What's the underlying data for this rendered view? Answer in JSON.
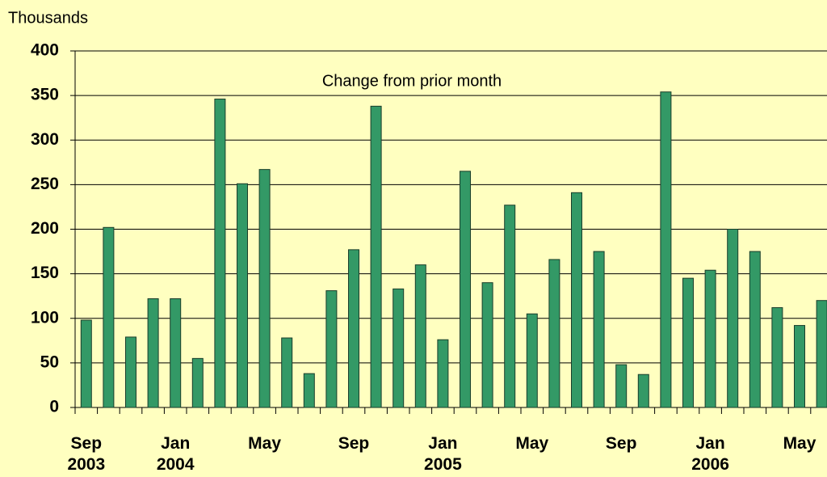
{
  "chart_data": {
    "type": "bar",
    "y_axis_label": "Thousands",
    "annotation": "Change from prior month",
    "categories": [
      "Sep\n2003",
      null,
      null,
      null,
      "Jan\n2004",
      null,
      null,
      null,
      "May",
      null,
      null,
      null,
      "Sep",
      null,
      null,
      null,
      "Jan\n2005",
      null,
      null,
      null,
      "May",
      null,
      null,
      null,
      "Sep",
      null,
      null,
      null,
      "Jan\n2006",
      null,
      null,
      null,
      "May",
      null
    ],
    "values": [
      98,
      202,
      79,
      122,
      122,
      55,
      346,
      251,
      267,
      78,
      38,
      131,
      177,
      338,
      133,
      160,
      76,
      265,
      140,
      227,
      105,
      166,
      241,
      175,
      48,
      37,
      354,
      145,
      154,
      200,
      175,
      112,
      92,
      120
    ],
    "color": "#339966",
    "ylim": [
      0,
      400
    ],
    "yticks": [
      0,
      50,
      100,
      150,
      200,
      250,
      300,
      350,
      400
    ],
    "grid": true
  }
}
